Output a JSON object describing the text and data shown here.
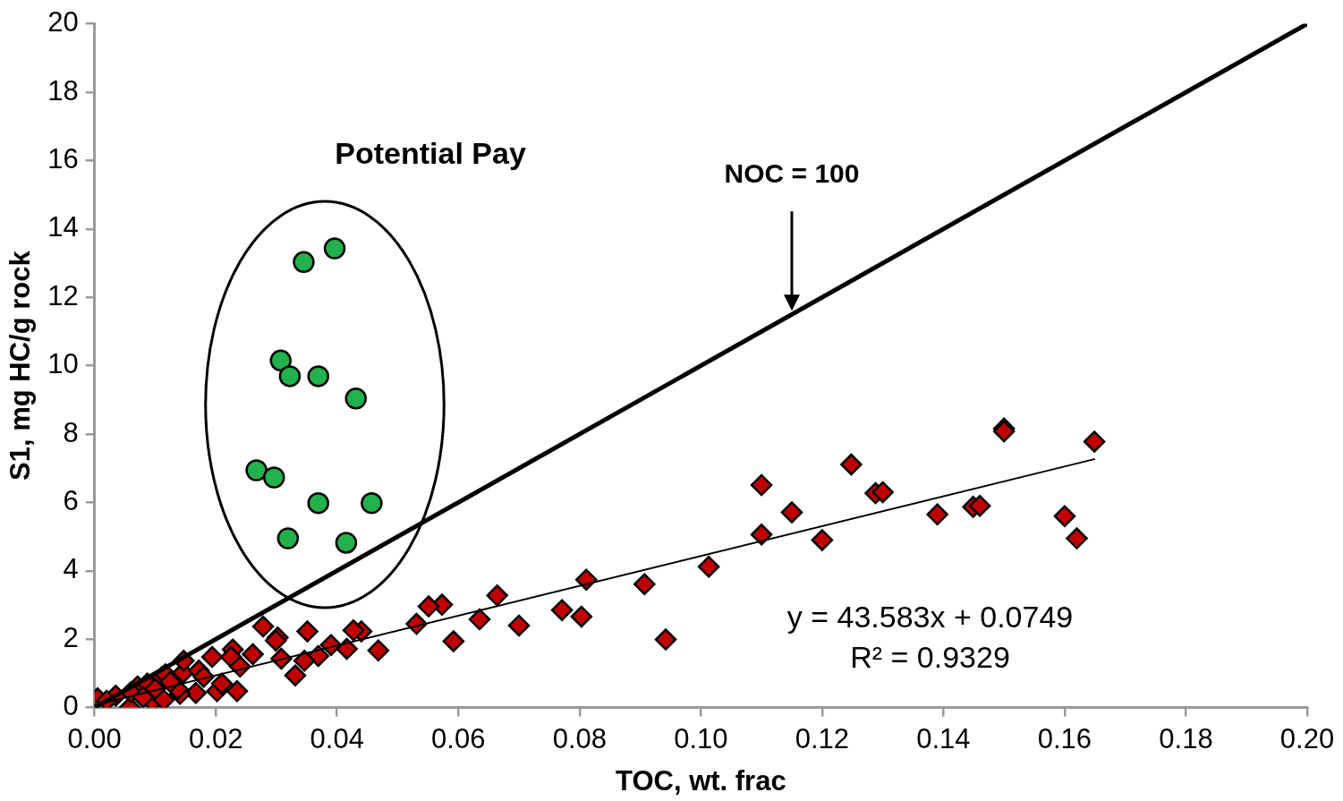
{
  "chart_data": {
    "type": "scatter",
    "xlabel": "TOC, wt. frac",
    "ylabel": "S1, mg HC/g rock",
    "xlim": [
      0,
      0.2
    ],
    "ylim": [
      0,
      20
    ],
    "xticks": [
      {
        "value": 0,
        "label": "0.00"
      },
      0.02,
      0.04,
      0.06,
      0.08,
      {
        "value": 0.1,
        "label": "0.10"
      },
      0.12,
      0.14,
      0.16,
      0.18,
      {
        "value": 0.2,
        "label": "0.20"
      }
    ],
    "yticks": [
      0,
      2,
      4,
      6,
      8,
      10,
      12,
      14,
      16,
      18,
      20
    ],
    "grid": false,
    "legend": false,
    "series": [
      {
        "type": "line",
        "color": "#000000",
        "marker": "none",
        "x": [
          0,
          0.2
        ],
        "values": [
          0,
          20
        ]
      },
      {
        "type": "line",
        "color": "#000000",
        "marker": "none",
        "x": [
          0,
          0.165
        ],
        "values": [
          0.07,
          7.27
        ]
      },
      {
        "color": "#c00000",
        "marker": "diamond",
        "x": [
          0.1649,
          0.15,
          0.15,
          0.1248,
          0.11,
          0.115,
          0.1288,
          0.13,
          0.11,
          0.12,
          0.139,
          0.1449,
          0.146,
          0.16,
          0.162,
          0.1013,
          0.0907,
          0.0942,
          0.0811,
          0.0771,
          0.0803,
          0.07,
          0.0664,
          0.0635,
          0.0592,
          0.0573,
          0.0551,
          0.0531,
          0.0468,
          0.044,
          0.0427,
          0.0416,
          0.039,
          0.0369,
          0.0351,
          0.0331,
          0.0308,
          0.0302,
          0.0278,
          0.0299,
          0.0194,
          0.0228,
          0.0261,
          0.0225,
          0.0146,
          0.0172,
          0.0346,
          0.0111,
          0.0096,
          0.0058,
          0.0167,
          0.0202,
          0.0235,
          0.0114,
          0.0141,
          0.0005,
          0.0035,
          0.0071,
          0.0087,
          0.0147,
          0.0117,
          0.0137,
          0.002,
          0.006,
          0.01,
          0.008,
          0.0125,
          0.018,
          0.021,
          0.024
        ],
        "values": [
          7.78,
          8.16,
          8.08,
          7.11,
          6.51,
          5.71,
          6.27,
          6.3,
          5.06,
          4.9,
          5.65,
          5.87,
          5.9,
          5.6,
          4.95,
          4.12,
          3.61,
          1.99,
          3.74,
          2.85,
          2.66,
          2.4,
          3.28,
          2.58,
          1.94,
          3.01,
          2.96,
          2.45,
          1.67,
          2.23,
          2.26,
          1.72,
          1.83,
          1.51,
          2.23,
          0.94,
          1.43,
          2.05,
          2.37,
          1.96,
          1.48,
          1.7,
          1.56,
          1.48,
          1.02,
          1.08,
          1.37,
          0.89,
          0.16,
          0.0,
          0.43,
          0.48,
          0.48,
          0.22,
          0.4,
          0.27,
          0.35,
          0.62,
          0.7,
          1.37,
          0.97,
          0.54,
          0.2,
          0.45,
          0.55,
          0.3,
          0.75,
          0.9,
          0.7,
          1.2
        ]
      },
      {
        "color": "#22b14c",
        "marker": "circle",
        "x": [
          0.0345,
          0.0396,
          0.0307,
          0.0322,
          0.0369,
          0.0431,
          0.0267,
          0.0296,
          0.0369,
          0.0457,
          0.0319,
          0.0415
        ],
        "values": [
          13.03,
          13.43,
          10.15,
          9.69,
          9.69,
          9.04,
          6.94,
          6.73,
          5.98,
          5.98,
          4.95,
          4.82
        ]
      }
    ],
    "annotations": [
      "Potential Pay",
      "NOC = 100",
      "y = 43.583x + 0.0749",
      "R² = 0.9329"
    ]
  }
}
